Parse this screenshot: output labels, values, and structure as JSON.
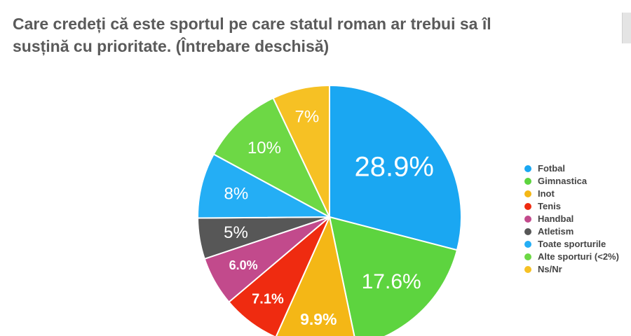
{
  "title_lines": [
    "Care credeți că este sportul pe care statul roman ar trebui sa îl",
    "susțină cu prioritate. (Întrebare deschisă)"
  ],
  "chart_data": {
    "type": "pie",
    "slices": [
      {
        "name": "Fotbal",
        "value": 28.9,
        "label": "28.9%",
        "color": "#1aa7f2"
      },
      {
        "name": "Gimnastica",
        "value": 17.6,
        "label": "17.6%",
        "color": "#5dd43f"
      },
      {
        "name": "Inot",
        "value": 9.9,
        "label": "9.9%",
        "color": "#f4b716"
      },
      {
        "name": "Tenis",
        "value": 7.1,
        "label": "7.1%",
        "color": "#ef2b10"
      },
      {
        "name": "Handbal",
        "value": 6.0,
        "label": "6.0%",
        "color": "#c24a8c"
      },
      {
        "name": "Atletism",
        "value": 5,
        "label": "5%",
        "color": "#575757"
      },
      {
        "name": "Toate sporturile",
        "value": 8,
        "label": "8%",
        "color": "#24aef5"
      },
      {
        "name": "Alte sporturi (<2%)",
        "value": 10,
        "label": "10%",
        "color": "#6dd845"
      },
      {
        "name": "Ns/Nr",
        "value": 7,
        "label": "7%",
        "color": "#f6c124"
      }
    ],
    "legend_position": "right"
  }
}
